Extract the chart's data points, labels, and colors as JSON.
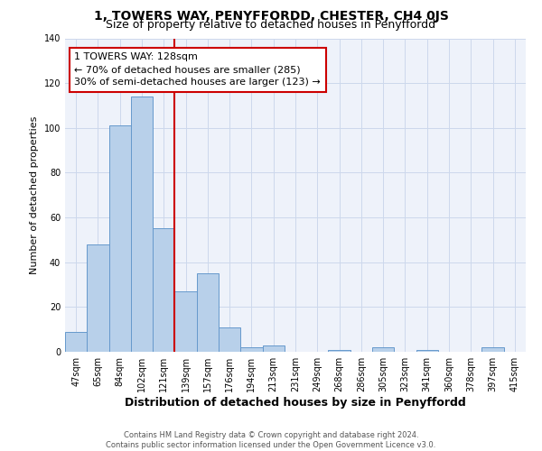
{
  "title": "1, TOWERS WAY, PENYFFORDD, CHESTER, CH4 0JS",
  "subtitle": "Size of property relative to detached houses in Penyffordd",
  "xlabel": "Distribution of detached houses by size in Penyffordd",
  "ylabel": "Number of detached properties",
  "bar_labels": [
    "47sqm",
    "65sqm",
    "84sqm",
    "102sqm",
    "121sqm",
    "139sqm",
    "157sqm",
    "176sqm",
    "194sqm",
    "213sqm",
    "231sqm",
    "249sqm",
    "268sqm",
    "286sqm",
    "305sqm",
    "323sqm",
    "341sqm",
    "360sqm",
    "378sqm",
    "397sqm",
    "415sqm"
  ],
  "bar_values": [
    9,
    48,
    101,
    114,
    55,
    27,
    35,
    11,
    2,
    3,
    0,
    0,
    1,
    0,
    2,
    0,
    1,
    0,
    0,
    2,
    0
  ],
  "bar_color": "#b8d0ea",
  "bar_edge_color": "#6699cc",
  "vline_color": "#cc0000",
  "annotation_line1": "1 TOWERS WAY: 128sqm",
  "annotation_line2": "← 70% of detached houses are smaller (285)",
  "annotation_line3": "30% of semi-detached houses are larger (123) →",
  "annotation_box_color": "#ffffff",
  "annotation_box_edge": "#cc0000",
  "ylim": [
    0,
    140
  ],
  "yticks": [
    0,
    20,
    40,
    60,
    80,
    100,
    120,
    140
  ],
  "grid_color": "#ccd8ec",
  "bg_color": "#eef2fa",
  "footer_text": "Contains HM Land Registry data © Crown copyright and database right 2024.\nContains public sector information licensed under the Open Government Licence v3.0.",
  "title_fontsize": 10,
  "subtitle_fontsize": 9,
  "xlabel_fontsize": 9,
  "ylabel_fontsize": 8,
  "tick_fontsize": 7,
  "annotation_fontsize": 8,
  "footer_fontsize": 6
}
